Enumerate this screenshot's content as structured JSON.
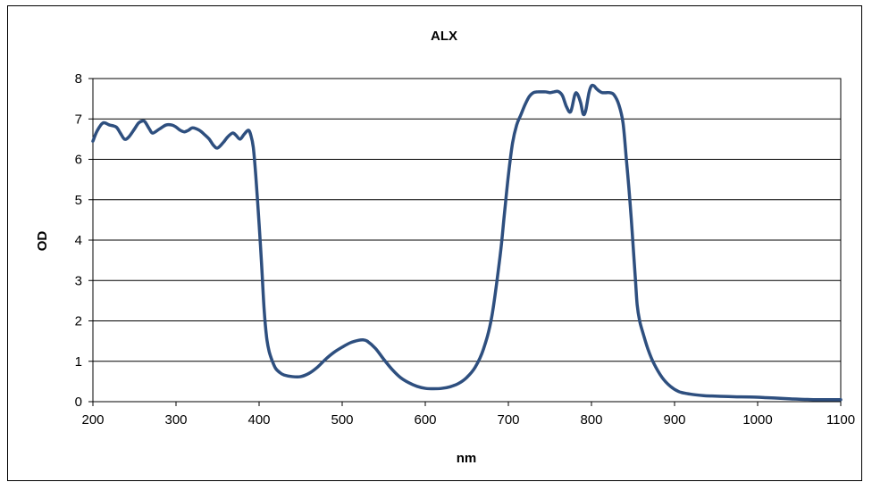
{
  "chart_data": {
    "type": "line",
    "title": "ALX",
    "xlabel": "nm",
    "ylabel": "OD",
    "xlim": [
      200,
      1100
    ],
    "ylim": [
      0,
      8
    ],
    "xticks": [
      "200",
      "300",
      "400",
      "500",
      "600",
      "700",
      "800",
      "900",
      "1000",
      "1100"
    ],
    "yticks": [
      "0",
      "1",
      "2",
      "3",
      "4",
      "5",
      "6",
      "7",
      "8"
    ],
    "grid": "horizontal",
    "line_color": "#2e4f7f",
    "x": [
      200,
      205,
      212,
      220,
      228,
      233,
      238,
      243,
      250,
      255,
      260,
      263,
      268,
      272,
      280,
      288,
      295,
      300,
      305,
      310,
      315,
      320,
      328,
      335,
      340,
      345,
      350,
      357,
      362,
      368,
      372,
      377,
      382,
      387,
      390,
      393,
      396,
      400,
      403,
      406,
      409,
      412,
      416,
      420,
      425,
      430,
      440,
      450,
      460,
      470,
      480,
      490,
      500,
      510,
      520,
      525,
      530,
      540,
      550,
      560,
      570,
      580,
      590,
      600,
      610,
      620,
      630,
      640,
      650,
      660,
      670,
      680,
      690,
      695,
      700,
      705,
      710,
      715,
      720,
      725,
      730,
      735,
      740,
      745,
      750,
      755,
      760,
      765,
      770,
      775,
      780,
      783,
      787,
      790,
      793,
      797,
      800,
      803,
      806,
      810,
      813,
      817,
      822,
      827,
      833,
      838,
      842,
      845,
      848,
      850,
      853,
      855,
      858,
      862,
      868,
      875,
      885,
      895,
      905,
      915,
      925,
      935,
      945,
      960,
      975,
      990,
      1000,
      1010,
      1020,
      1030,
      1040,
      1050,
      1060,
      1070,
      1080,
      1090,
      1100
    ],
    "y": [
      6.45,
      6.7,
      6.9,
      6.85,
      6.8,
      6.65,
      6.5,
      6.55,
      6.75,
      6.9,
      6.95,
      6.92,
      6.75,
      6.65,
      6.75,
      6.85,
      6.85,
      6.8,
      6.72,
      6.68,
      6.72,
      6.78,
      6.72,
      6.6,
      6.5,
      6.35,
      6.28,
      6.42,
      6.55,
      6.65,
      6.6,
      6.5,
      6.62,
      6.72,
      6.6,
      6.3,
      5.6,
      4.4,
      3.4,
      2.3,
      1.6,
      1.25,
      1.0,
      0.82,
      0.72,
      0.66,
      0.62,
      0.62,
      0.7,
      0.85,
      1.05,
      1.22,
      1.35,
      1.46,
      1.52,
      1.53,
      1.5,
      1.32,
      1.05,
      0.8,
      0.6,
      0.47,
      0.38,
      0.33,
      0.32,
      0.33,
      0.37,
      0.45,
      0.6,
      0.85,
      1.3,
      2.1,
      3.6,
      4.6,
      5.6,
      6.4,
      6.85,
      7.1,
      7.35,
      7.55,
      7.65,
      7.67,
      7.67,
      7.67,
      7.65,
      7.67,
      7.68,
      7.58,
      7.3,
      7.18,
      7.6,
      7.62,
      7.4,
      7.12,
      7.2,
      7.65,
      7.82,
      7.82,
      7.75,
      7.68,
      7.65,
      7.65,
      7.65,
      7.6,
      7.35,
      6.9,
      6.0,
      5.3,
      4.5,
      3.9,
      3.0,
      2.4,
      2.0,
      1.7,
      1.3,
      0.95,
      0.6,
      0.38,
      0.25,
      0.2,
      0.17,
      0.15,
      0.14,
      0.13,
      0.12,
      0.115,
      0.11,
      0.1,
      0.09,
      0.08,
      0.07,
      0.06,
      0.055,
      0.05,
      0.05,
      0.05,
      0.05
    ]
  }
}
